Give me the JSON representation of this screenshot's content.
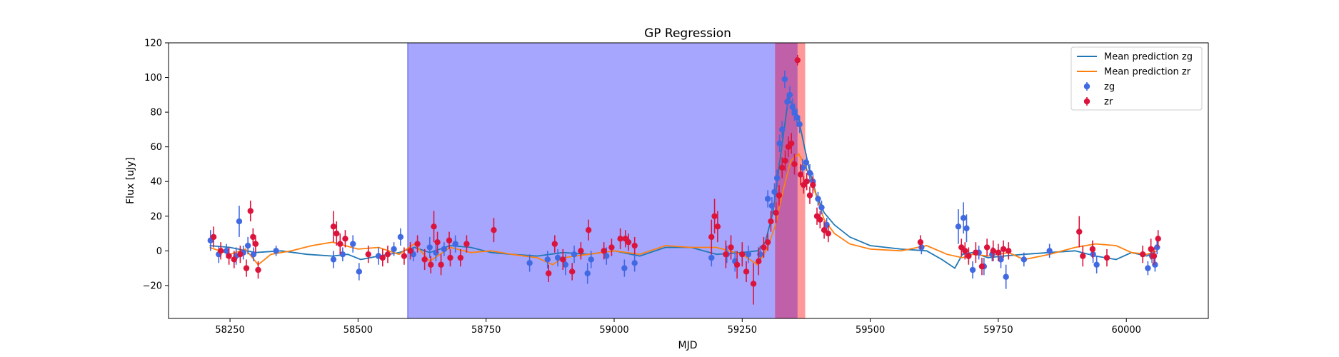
{
  "chart_data": {
    "type": "scatter",
    "title": "GP Regression",
    "xlabel": "MJD",
    "ylabel": "Flux [uJy]",
    "xlim": [
      58130,
      60160
    ],
    "ylim": [
      -39,
      120
    ],
    "xticks": [
      58250,
      58500,
      58750,
      59000,
      59250,
      59500,
      59750,
      60000
    ],
    "yticks": [
      -20,
      0,
      20,
      40,
      60,
      80,
      100,
      120
    ],
    "grid": false,
    "legend_position": "top-right",
    "colors": {
      "zg_line": "#1f77b4",
      "zr_line": "#ff7f0e",
      "zg_points": "#4169e1",
      "zr_points": "#dc143c",
      "span_blue": "#a6a6ff",
      "span_red": "#ff9999",
      "span_overlap": "#c060a8"
    },
    "spans": [
      {
        "x0": 58597,
        "x1": 59314,
        "color": "blue"
      },
      {
        "x0": 59314,
        "x1": 59373,
        "color": "red"
      }
    ],
    "legend": [
      {
        "label": "Mean prediction zg",
        "kind": "line",
        "color": "#1f77b4"
      },
      {
        "label": "Mean prediction zr",
        "kind": "line",
        "color": "#ff7f0e"
      },
      {
        "label": "zg",
        "kind": "errorbar",
        "color": "#4169e1"
      },
      {
        "label": "zr",
        "kind": "errorbar",
        "color": "#dc143c"
      }
    ],
    "series": [
      {
        "name": "Mean prediction zg",
        "type": "line",
        "color": "#1f77b4",
        "x": [
          58210,
          58250,
          58300,
          58350,
          58400,
          58450,
          58480,
          58505,
          58540,
          58580,
          58610,
          58640,
          58680,
          58720,
          58760,
          58800,
          58850,
          58900,
          58950,
          59000,
          59050,
          59100,
          59150,
          59200,
          59250,
          59280,
          59295,
          59310,
          59325,
          59340,
          59350,
          59360,
          59370,
          59380,
          59395,
          59410,
          59430,
          59460,
          59500,
          59560,
          59610,
          59640,
          59665,
          59680,
          59700,
          59730,
          59760,
          59800,
          59850,
          59900,
          59940,
          59980,
          60010,
          60040,
          60060
        ],
        "y": [
          3,
          2,
          -1,
          0,
          -2,
          -3,
          -2,
          -5,
          -3,
          -1,
          2,
          -1,
          3,
          2,
          -1,
          -2,
          -3,
          -1,
          -2,
          0,
          -3,
          2,
          2,
          -2,
          -1,
          0,
          5,
          22,
          55,
          88,
          84,
          76,
          62,
          48,
          32,
          22,
          15,
          8,
          3,
          1,
          0,
          -5,
          -10,
          -2,
          -1,
          -4,
          -3,
          -2,
          -1,
          0,
          -3,
          -5,
          -1,
          -3,
          0
        ]
      },
      {
        "name": "Mean prediction zr",
        "type": "line",
        "color": "#ff7f0e",
        "x": [
          58210,
          58250,
          58280,
          58305,
          58330,
          58370,
          58410,
          58450,
          58500,
          58540,
          58580,
          58610,
          58640,
          58680,
          58720,
          58760,
          58800,
          58850,
          58880,
          58900,
          58950,
          59000,
          59050,
          59100,
          59150,
          59200,
          59250,
          59280,
          59300,
          59315,
          59330,
          59345,
          59360,
          59375,
          59390,
          59410,
          59430,
          59460,
          59500,
          59560,
          59610,
          59650,
          59680,
          59700,
          59730,
          59770,
          59800,
          59850,
          59900,
          59940,
          59980,
          60010,
          60040,
          60060
        ],
        "y": [
          2,
          -2,
          1,
          -8,
          -2,
          0,
          3,
          5,
          1,
          2,
          -2,
          4,
          -6,
          2,
          -1,
          0,
          -2,
          -4,
          -8,
          -4,
          -2,
          0,
          -2,
          3,
          2,
          2,
          -2,
          -8,
          2,
          15,
          35,
          52,
          56,
          48,
          36,
          18,
          10,
          4,
          1,
          0,
          3,
          -2,
          -4,
          -2,
          -3,
          -1,
          -5,
          -2,
          2,
          4,
          3,
          -1,
          -2,
          0
        ]
      },
      {
        "name": "zg",
        "type": "errorbar",
        "color": "#4169e1",
        "x": [
          58212,
          58228,
          58243,
          58262,
          58268,
          58276,
          58285,
          58296,
          58340,
          58452,
          58470,
          58490,
          58502,
          58540,
          58570,
          58583,
          58608,
          58640,
          58652,
          58668,
          58690,
          58835,
          58870,
          58890,
          58905,
          58922,
          58948,
          58955,
          58985,
          59020,
          59040,
          59190,
          59220,
          59236,
          59262,
          59285,
          59300,
          59308,
          59313,
          59318,
          59323,
          59328,
          59333,
          59338,
          59343,
          59348,
          59352,
          59357,
          59362,
          59368,
          59375,
          59382,
          59388,
          59398,
          59405,
          59415,
          59600,
          59672,
          59682,
          59688,
          59692,
          59700,
          59712,
          59722,
          59738,
          59755,
          59765,
          59800,
          59850,
          59935,
          59942,
          60042,
          60050,
          60056,
          60060
        ],
        "y": [
          6,
          -2,
          0,
          -3,
          17,
          -1,
          3,
          -2,
          0,
          -5,
          -2,
          4,
          -12,
          -3,
          1,
          8,
          -2,
          2,
          -1,
          1,
          4,
          -7,
          -5,
          -4,
          -8,
          -2,
          -13,
          -5,
          -3,
          -10,
          -7,
          -4,
          -2,
          -6,
          -2,
          -2,
          30,
          26,
          34,
          42,
          62,
          70,
          99,
          86,
          90,
          83,
          80,
          77,
          73,
          48,
          51,
          45,
          40,
          30,
          25,
          15,
          2,
          14,
          19,
          13,
          -3,
          -11,
          -1,
          -9,
          -2,
          -5,
          -15,
          -5,
          0,
          -2,
          -8,
          -10,
          -3,
          -8,
          2
        ],
        "yerr": [
          6,
          5,
          4,
          5,
          9,
          4,
          5,
          4,
          3,
          5,
          4,
          5,
          5,
          5,
          4,
          5,
          4,
          6,
          5,
          4,
          5,
          5,
          5,
          5,
          6,
          5,
          6,
          5,
          5,
          5,
          5,
          5,
          5,
          6,
          5,
          5,
          5,
          5,
          5,
          5,
          5,
          5,
          5,
          5,
          5,
          5,
          5,
          5,
          5,
          5,
          5,
          5,
          5,
          4,
          4,
          4,
          4,
          10,
          9,
          8,
          4,
          5,
          4,
          5,
          4,
          5,
          7,
          4,
          4,
          5,
          5,
          4,
          4,
          4,
          4
        ]
      },
      {
        "name": "zr",
        "type": "errorbar",
        "color": "#dc143c",
        "x": [
          58218,
          58232,
          58248,
          58258,
          58270,
          58282,
          58290,
          58295,
          58300,
          58305,
          58452,
          58458,
          58465,
          58475,
          58520,
          58548,
          58558,
          58590,
          58602,
          58616,
          58630,
          58642,
          58648,
          58655,
          58662,
          58678,
          58680,
          58700,
          58712,
          58765,
          58872,
          58884,
          58900,
          58918,
          58935,
          58950,
          58980,
          58995,
          59012,
          59022,
          59028,
          59040,
          59190,
          59196,
          59202,
          59218,
          59228,
          59240,
          59250,
          59258,
          59272,
          59282,
          59292,
          59300,
          59306,
          59316,
          59322,
          59328,
          59334,
          59340,
          59346,
          59352,
          59358,
          59364,
          59370,
          59376,
          59382,
          59388,
          59396,
          59402,
          59410,
          59418,
          59598,
          59678,
          59685,
          59692,
          59706,
          59718,
          59728,
          59740,
          59750,
          59760,
          59770,
          59908,
          59915,
          59934,
          59962,
          60032,
          60048,
          60054,
          60062
        ],
        "y": [
          8,
          0,
          -3,
          -5,
          -2,
          -10,
          23,
          8,
          4,
          -11,
          14,
          10,
          4,
          7,
          -2,
          -4,
          -2,
          -3,
          0,
          4,
          -5,
          -8,
          14,
          5,
          -8,
          6,
          -4,
          -4,
          4,
          12,
          -13,
          4,
          -5,
          -12,
          0,
          12,
          0,
          2,
          7,
          7,
          5,
          3,
          8,
          20,
          14,
          -2,
          2,
          -8,
          -2,
          -12,
          -19,
          -6,
          2,
          5,
          17,
          22,
          32,
          48,
          52,
          60,
          62,
          50,
          110,
          44,
          38,
          40,
          32,
          38,
          20,
          18,
          12,
          10,
          5,
          2,
          0,
          -3,
          -1,
          -9,
          2,
          0,
          -1,
          1,
          0,
          11,
          -3,
          1,
          -4,
          -2,
          1,
          -3,
          7
        ],
        "yerr": [
          6,
          5,
          5,
          5,
          5,
          5,
          6,
          5,
          5,
          5,
          9,
          7,
          6,
          5,
          5,
          5,
          5,
          5,
          5,
          5,
          6,
          5,
          9,
          6,
          6,
          5,
          5,
          5,
          5,
          7,
          5,
          5,
          6,
          5,
          5,
          6,
          5,
          5,
          6,
          5,
          5,
          5,
          10,
          10,
          9,
          8,
          7,
          8,
          7,
          6,
          12,
          8,
          6,
          5,
          6,
          6,
          6,
          6,
          6,
          6,
          6,
          6,
          3,
          6,
          5,
          5,
          5,
          5,
          5,
          5,
          5,
          5,
          4,
          5,
          5,
          5,
          6,
          5,
          5,
          6,
          5,
          5,
          5,
          9,
          6,
          5,
          5,
          5,
          6,
          5,
          5
        ]
      }
    ]
  }
}
